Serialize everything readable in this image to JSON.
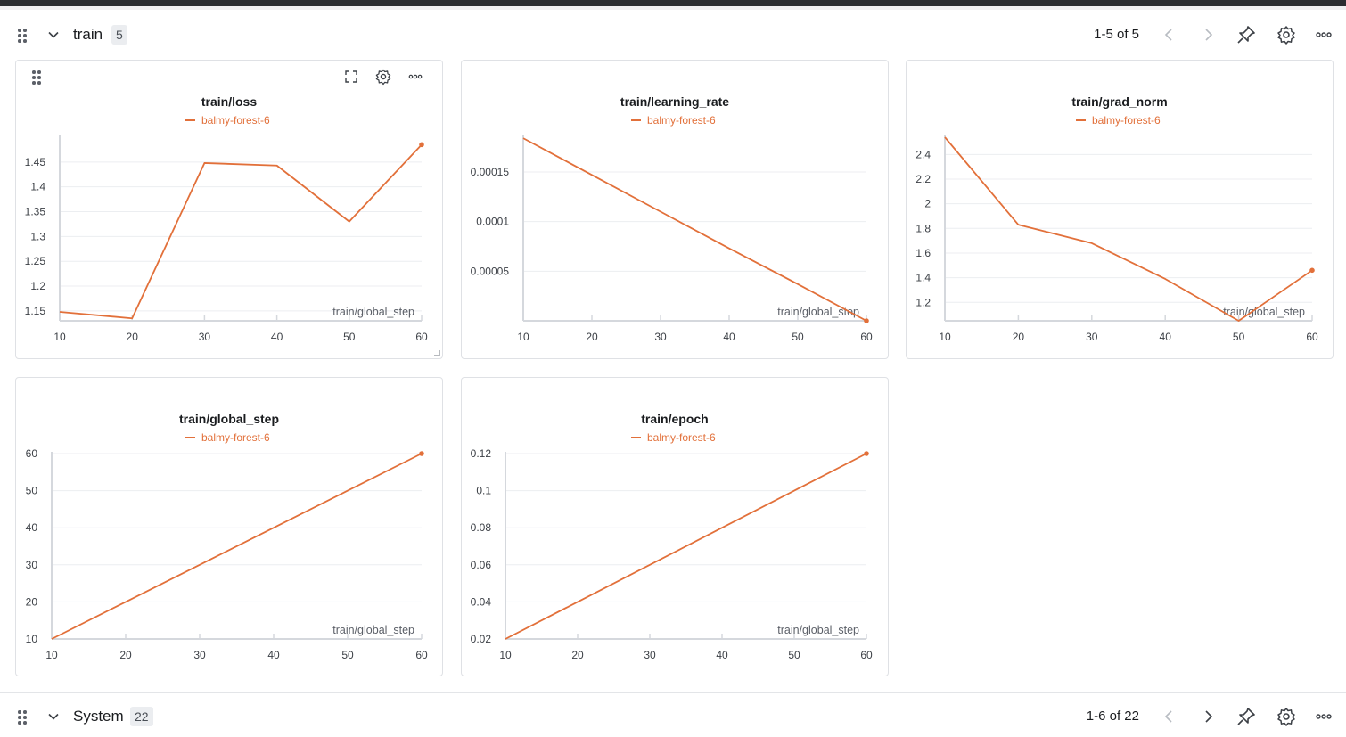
{
  "sections": [
    {
      "title": "train",
      "count": "5",
      "pager": "1-5 of 5",
      "icons": {
        "drag": "drag-handle-icon",
        "collapse": "chevron-down-icon",
        "prev": "chevron-left-icon",
        "next": "chevron-right-icon",
        "pin": "pin-icon",
        "settings": "gear-icon",
        "more": "more-horizontal-icon"
      }
    },
    {
      "title": "System",
      "count": "22",
      "pager": "1-6 of 22",
      "icons": {
        "drag": "drag-handle-icon",
        "collapse": "chevron-down-icon",
        "prev": "chevron-left-icon",
        "next": "chevron-right-icon",
        "pin": "pin-icon",
        "settings": "gear-icon",
        "more": "more-horizontal-icon"
      }
    }
  ],
  "panel_toolbar": {
    "icons": [
      "drag-handle-icon",
      "fullscreen-icon",
      "gear-icon",
      "more-horizontal-icon"
    ]
  },
  "series_color": "#e2703a",
  "chart_data": [
    {
      "type": "line",
      "title": "train/loss",
      "legend": "balmy-forest-6",
      "xlabel": "train/global_step",
      "x": [
        10,
        20,
        30,
        40,
        50,
        60
      ],
      "series": [
        {
          "name": "balmy-forest-6",
          "values": [
            1.148,
            1.135,
            1.448,
            1.443,
            1.33,
            1.485
          ]
        }
      ],
      "xlim": [
        10,
        60
      ],
      "ylim": [
        1.13,
        1.5
      ],
      "xticks": [
        "10",
        "20",
        "30",
        "40",
        "50",
        "60"
      ],
      "yticks": [
        "1.15",
        "1.2",
        "1.25",
        "1.3",
        "1.35",
        "1.4",
        "1.45"
      ],
      "ytick_values": [
        1.15,
        1.2,
        1.25,
        1.3,
        1.35,
        1.4,
        1.45
      ],
      "grid": true
    },
    {
      "type": "line",
      "title": "train/learning_rate",
      "legend": "balmy-forest-6",
      "xlabel": "train/global_step",
      "x": [
        10,
        20,
        30,
        40,
        50,
        60
      ],
      "series": [
        {
          "name": "balmy-forest-6",
          "values": [
            0.000184,
            0.000147,
            0.00011,
            7.3e-05,
            3.7e-05,
            0.0
          ]
        }
      ],
      "xlim": [
        10,
        60
      ],
      "ylim": [
        0.0,
        0.000185
      ],
      "xticks": [
        "10",
        "20",
        "30",
        "40",
        "50",
        "60"
      ],
      "yticks": [
        "0.00005",
        "0.0001",
        "0.00015"
      ],
      "ytick_values": [
        5e-05,
        0.0001,
        0.00015
      ],
      "grid": true
    },
    {
      "type": "line",
      "title": "train/grad_norm",
      "legend": "balmy-forest-6",
      "xlabel": "train/global_step",
      "x": [
        10,
        20,
        30,
        40,
        50,
        60
      ],
      "series": [
        {
          "name": "balmy-forest-6",
          "values": [
            2.54,
            1.83,
            1.68,
            1.39,
            1.05,
            1.46
          ]
        }
      ],
      "xlim": [
        10,
        60
      ],
      "ylim": [
        1.05,
        2.54
      ],
      "xticks": [
        "10",
        "20",
        "30",
        "40",
        "50",
        "60"
      ],
      "yticks": [
        "1.2",
        "1.4",
        "1.6",
        "1.8",
        "2",
        "2.2",
        "2.4"
      ],
      "ytick_values": [
        1.2,
        1.4,
        1.6,
        1.8,
        2.0,
        2.2,
        2.4
      ],
      "grid": true
    },
    {
      "type": "line",
      "title": "train/global_step",
      "legend": "balmy-forest-6",
      "xlabel": "train/global_step",
      "x": [
        10,
        20,
        30,
        40,
        50,
        60
      ],
      "series": [
        {
          "name": "balmy-forest-6",
          "values": [
            10,
            20,
            30,
            40,
            50,
            60
          ]
        }
      ],
      "xlim": [
        10,
        60
      ],
      "ylim": [
        10,
        60
      ],
      "xticks": [
        "10",
        "20",
        "30",
        "40",
        "50",
        "60"
      ],
      "yticks": [
        "10",
        "20",
        "30",
        "40",
        "50",
        "60"
      ],
      "ytick_values": [
        10,
        20,
        30,
        40,
        50,
        60
      ],
      "grid": true
    },
    {
      "type": "line",
      "title": "train/epoch",
      "legend": "balmy-forest-6",
      "xlabel": "train/global_step",
      "x": [
        10,
        20,
        30,
        40,
        50,
        60
      ],
      "series": [
        {
          "name": "balmy-forest-6",
          "values": [
            0.02,
            0.04,
            0.06,
            0.08,
            0.1,
            0.12
          ]
        }
      ],
      "xlim": [
        10,
        60
      ],
      "ylim": [
        0.02,
        0.12
      ],
      "xticks": [
        "10",
        "20",
        "30",
        "40",
        "50",
        "60"
      ],
      "yticks": [
        "0.02",
        "0.04",
        "0.06",
        "0.08",
        "0.1",
        "0.12"
      ],
      "ytick_values": [
        0.02,
        0.04,
        0.06,
        0.08,
        0.1,
        0.12
      ],
      "grid": true
    }
  ]
}
